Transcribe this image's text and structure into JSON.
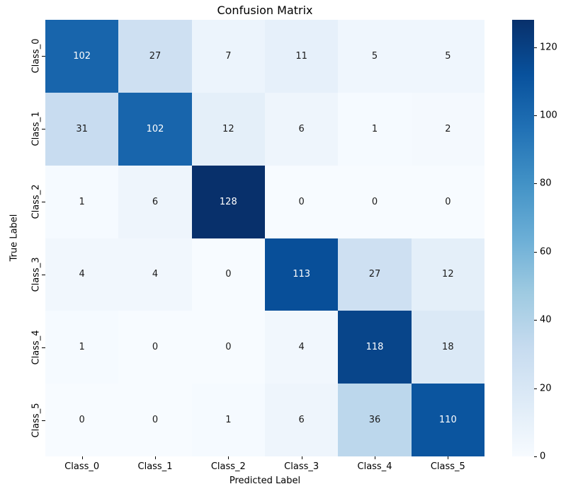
{
  "chart_data": {
    "type": "heatmap",
    "title": "Confusion Matrix",
    "xlabel": "Predicted Label",
    "ylabel": "True Label",
    "x_categories": [
      "Class_0",
      "Class_1",
      "Class_2",
      "Class_3",
      "Class_4",
      "Class_5"
    ],
    "y_categories": [
      "Class_0",
      "Class_1",
      "Class_2",
      "Class_3",
      "Class_4",
      "Class_5"
    ],
    "matrix": [
      [
        102,
        27,
        7,
        11,
        5,
        5
      ],
      [
        31,
        102,
        12,
        6,
        1,
        2
      ],
      [
        1,
        6,
        128,
        0,
        0,
        0
      ],
      [
        4,
        4,
        0,
        113,
        27,
        12
      ],
      [
        1,
        0,
        0,
        4,
        118,
        18
      ],
      [
        0,
        0,
        1,
        6,
        36,
        110
      ]
    ],
    "vmin": 0,
    "vmax": 128,
    "colormap": "Blues",
    "colormap_stops": [
      "#f7fbff",
      "#deebf7",
      "#c6dbef",
      "#9ecae1",
      "#6baed6",
      "#4292c6",
      "#2171b5",
      "#08519c",
      "#08306b"
    ],
    "colorbar_ticks": [
      0,
      20,
      40,
      60,
      80,
      100,
      120
    ],
    "legend_position": "right-colorbar",
    "grid": false,
    "background": "#ffffff",
    "annotation_text_colors": {
      "light_cell": "#1a1a1a",
      "dark_cell": "#ffffff"
    }
  }
}
